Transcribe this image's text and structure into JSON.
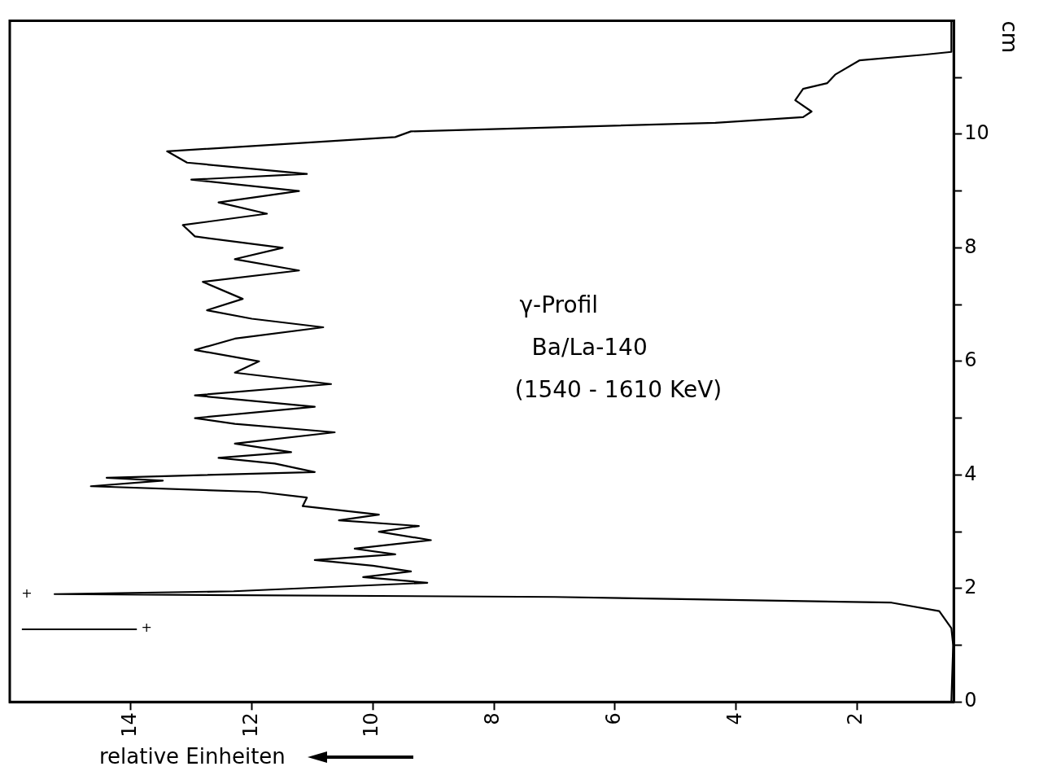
{
  "chart_data": {
    "type": "line",
    "orientation": "horizontal",
    "xlabel": "relative Einheiten",
    "ylabel": "cm",
    "marker": "none",
    "grid": false,
    "legend": false,
    "xlim": [
      16,
      0.4
    ],
    "xticks": [
      {
        "value": 14,
        "label": "14"
      },
      {
        "value": 12,
        "label": "12"
      },
      {
        "value": 10,
        "label": "10"
      },
      {
        "value": 8,
        "label": "8"
      },
      {
        "value": 6,
        "label": "6"
      },
      {
        "value": 4,
        "label": "4"
      },
      {
        "value": 2,
        "label": "2"
      }
    ],
    "ylim": [
      0,
      12
    ],
    "yticks": [
      0,
      {
        "value": 1,
        "label": null
      },
      2,
      {
        "value": 3,
        "label": null
      },
      4,
      {
        "value": 5,
        "label": null
      },
      6,
      {
        "value": 7,
        "label": null
      },
      8,
      {
        "value": 9,
        "label": null
      },
      10,
      {
        "value": 11,
        "label": null
      }
    ],
    "annotations": [
      "γ-Profil",
      "Ba/La-140",
      "(1540 - 1610 KeV)",
      "+",
      "+"
    ],
    "series": [
      {
        "color": "#000000",
        "x": [
          0,
          1.0,
          1.3,
          1.6,
          1.75,
          1.85,
          1.9,
          1.95,
          2.1,
          2.2,
          2.3,
          2.4,
          2.5,
          2.6,
          2.7,
          2.85,
          3.0,
          3.1,
          3.2,
          3.3,
          3.45,
          3.6,
          3.7,
          3.8,
          3.9,
          3.95,
          4.05,
          4.2,
          4.3,
          4.4,
          4.55,
          4.75,
          4.9,
          5.0,
          5.2,
          5.4,
          5.6,
          5.8,
          6.0,
          6.2,
          6.4,
          6.6,
          6.75,
          6.9,
          7.1,
          7.4,
          7.6,
          7.8,
          8.0,
          8.2,
          8.4,
          8.6,
          8.8,
          9.0,
          9.2,
          9.3,
          9.5,
          9.7,
          9.8,
          9.95,
          10.05,
          10.2,
          10.3,
          10.4,
          10.6,
          10.8,
          10.9,
          11.05,
          11.3,
          11.4,
          11.45,
          12
        ],
        "values": [
          0.44,
          0.41,
          0.44,
          0.64,
          1.43,
          7.0,
          15.26,
          12.3,
          9.1,
          10.16,
          9.37,
          10.0,
          10.96,
          9.63,
          10.3,
          9.04,
          9.9,
          9.24,
          10.56,
          9.9,
          11.16,
          11.09,
          11.88,
          14.66,
          13.47,
          14.4,
          10.96,
          11.62,
          12.55,
          11.35,
          12.28,
          10.63,
          12.28,
          12.94,
          10.96,
          12.94,
          10.69,
          12.28,
          11.88,
          12.94,
          12.28,
          10.82,
          12.0,
          12.74,
          12.15,
          12.81,
          11.22,
          12.28,
          11.49,
          12.94,
          13.14,
          11.75,
          12.55,
          11.22,
          13.0,
          11.09,
          13.07,
          13.4,
          11.88,
          9.63,
          9.37,
          4.34,
          2.89,
          2.75,
          3.02,
          2.89,
          2.49,
          2.36,
          1.96,
          0.9,
          0.44,
          0.44
        ]
      },
      {
        "color": "#000000",
        "x": [
          1.28,
          1.28
        ],
        "values": [
          15.8,
          13.9
        ]
      }
    ]
  }
}
